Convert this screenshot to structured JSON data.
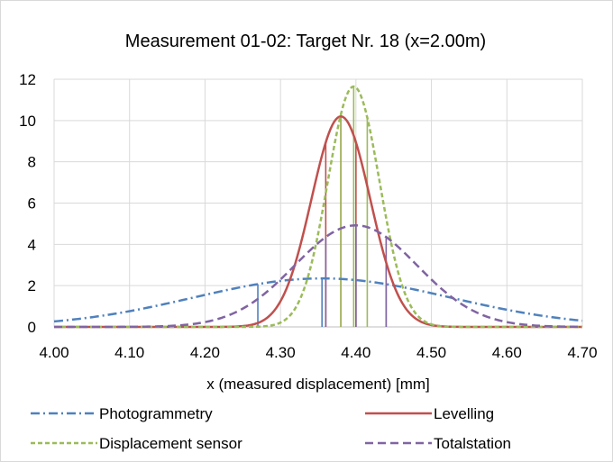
{
  "chart_data": {
    "type": "line",
    "title": "Measurement 01-02: Target Nr. 18 (x=2.00m)",
    "xlabel": "x (measured displacement) [mm]",
    "ylabel": "",
    "xlim": [
      4.0,
      4.7
    ],
    "ylim": [
      0,
      12
    ],
    "x_ticks": [
      "4.00",
      "4.10",
      "4.20",
      "4.30",
      "4.40",
      "4.50",
      "4.60",
      "4.70"
    ],
    "y_ticks": [
      "0",
      "2",
      "4",
      "6",
      "8",
      "10",
      "12"
    ],
    "grid": true,
    "legend_placement": "bottom",
    "series": [
      {
        "name": "Photogrammetry",
        "color": "#4f81bd",
        "style": "dash-dot",
        "mean": 4.355,
        "sd": 0.17,
        "peak": 2.35,
        "interval": [
          4.27,
          4.44
        ]
      },
      {
        "name": "Levelling",
        "color": "#c0504d",
        "style": "solid",
        "mean": 4.38,
        "sd": 0.039,
        "peak": 10.2,
        "interval": [
          4.36,
          4.4
        ]
      },
      {
        "name": "Displacement sensor",
        "color": "#9bbb59",
        "style": "dashed",
        "mean": 4.397,
        "sd": 0.0342,
        "peak": 11.65,
        "interval": [
          4.38,
          4.415
        ]
      },
      {
        "name": "Totalstation",
        "color": "#8064a2",
        "style": "long-dash",
        "mean": 4.4,
        "sd": 0.081,
        "peak": 4.92,
        "interval": [
          4.36,
          4.44
        ]
      }
    ]
  }
}
